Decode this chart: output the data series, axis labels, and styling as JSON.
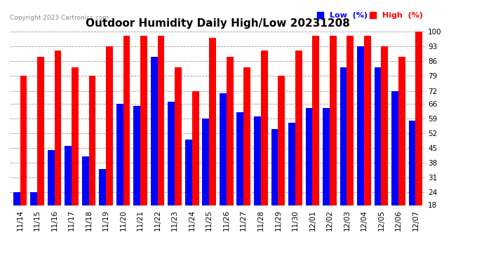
{
  "title": "Outdoor Humidity Daily High/Low 20231208",
  "copyright": "Copyright 2023 Cartronics.com",
  "legend_low": "Low  (%)",
  "legend_high": "High  (%)",
  "low_color": "#0000ff",
  "high_color": "#ff0000",
  "bg_color": "#ffffff",
  "ylim": [
    18,
    100
  ],
  "yticks": [
    18,
    24,
    31,
    38,
    45,
    52,
    59,
    66,
    72,
    79,
    86,
    93,
    100
  ],
  "categories": [
    "11/14",
    "11/15",
    "11/16",
    "11/17",
    "11/18",
    "11/19",
    "11/20",
    "11/21",
    "11/22",
    "11/23",
    "11/24",
    "11/25",
    "11/26",
    "11/27",
    "11/28",
    "11/29",
    "11/30",
    "12/01",
    "12/02",
    "12/03",
    "12/04",
    "12/05",
    "12/06",
    "12/07"
  ],
  "high_values": [
    79,
    88,
    91,
    83,
    79,
    93,
    98,
    98,
    98,
    83,
    72,
    97,
    88,
    83,
    91,
    79,
    91,
    98,
    98,
    98,
    98,
    93,
    88,
    100
  ],
  "low_values": [
    24,
    24,
    44,
    46,
    41,
    35,
    66,
    65,
    88,
    67,
    49,
    59,
    71,
    62,
    60,
    54,
    57,
    64,
    64,
    83,
    93,
    83,
    72,
    58
  ],
  "grid_color": "#999999",
  "title_fontsize": 11,
  "tick_fontsize": 7.5,
  "bar_width": 0.4
}
